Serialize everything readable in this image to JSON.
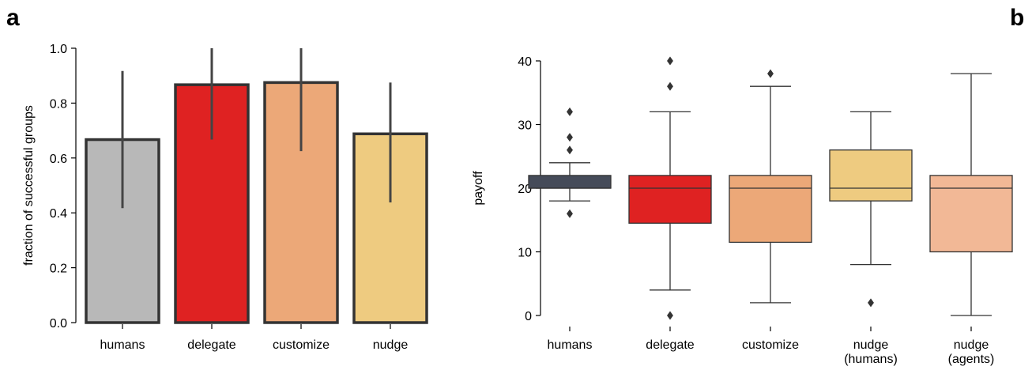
{
  "panels": {
    "a_letter": "a",
    "b_letter": "b"
  },
  "chart_data": [
    {
      "type": "bar",
      "title": "",
      "xlabel": "",
      "ylabel": "fraction of successful groups",
      "ylim": [
        0,
        1.0
      ],
      "yticks": [
        0.0,
        0.2,
        0.4,
        0.6,
        0.8,
        1.0
      ],
      "ytick_labels": [
        "0.0",
        "0.2",
        "0.4",
        "0.6",
        "0.8",
        "1.0"
      ],
      "categories": [
        "humans",
        "delegate",
        "customize",
        "nudge"
      ],
      "values": [
        0.667,
        0.867,
        0.875,
        0.688
      ],
      "error_low": [
        0.417,
        0.667,
        0.625,
        0.438
      ],
      "error_high": [
        0.917,
        1.0,
        1.0,
        0.875
      ],
      "colors": [
        "#b8b8b8",
        "#df2222",
        "#eca878",
        "#eecb80"
      ],
      "edge_color": "#333333",
      "grid": false
    },
    {
      "type": "box",
      "title": "",
      "xlabel": "",
      "ylabel": "payoff",
      "ylim": [
        -2,
        42
      ],
      "yticks": [
        0,
        10,
        20,
        30,
        40
      ],
      "ytick_labels": [
        "0",
        "10",
        "20",
        "30",
        "40"
      ],
      "categories": [
        [
          "humans"
        ],
        [
          "delegate"
        ],
        [
          "customize"
        ],
        [
          "nudge",
          "(humans)"
        ],
        [
          "nudge",
          "(agents)"
        ]
      ],
      "boxes": [
        {
          "whisker_low": 18,
          "q1": 20,
          "median": 20,
          "q3": 22,
          "whisker_high": 24,
          "outliers": [
            16,
            26,
            28,
            32
          ]
        },
        {
          "whisker_low": 4,
          "q1": 14.5,
          "median": 20,
          "q3": 22,
          "whisker_high": 32,
          "outliers": [
            0,
            36,
            40
          ]
        },
        {
          "whisker_low": 2,
          "q1": 11.5,
          "median": 20,
          "q3": 22,
          "whisker_high": 36,
          "outliers": [
            38
          ]
        },
        {
          "whisker_low": 8,
          "q1": 18,
          "median": 20,
          "q3": 26,
          "whisker_high": 32,
          "outliers": [
            2
          ]
        },
        {
          "whisker_low": 0,
          "q1": 10,
          "median": 20,
          "q3": 22,
          "whisker_high": 38,
          "outliers": []
        }
      ],
      "colors": [
        "#454b59",
        "#df2222",
        "#eca878",
        "#eecb80",
        "#f2b896"
      ],
      "line_color": "#333333",
      "grid": false
    }
  ]
}
